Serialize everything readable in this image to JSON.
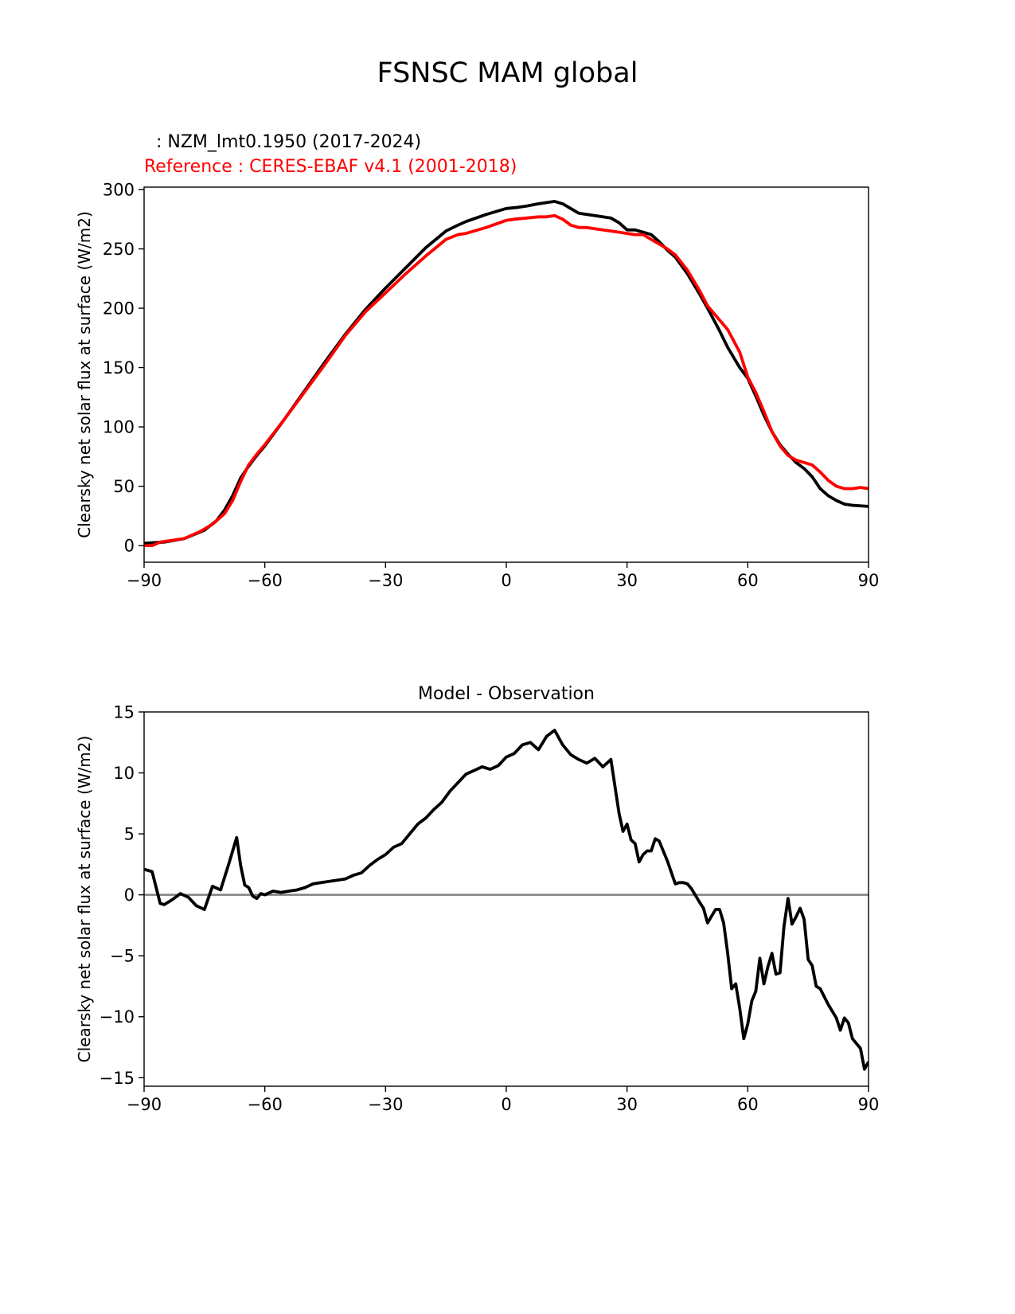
{
  "title": "FSNSC MAM global",
  "legend": {
    "test_label": ": NZM_lmt0.1950 (2017-2024)",
    "ref_label": "Reference : CERES-EBAF v4.1 (2001-2018)",
    "test_color": "#000000",
    "ref_color": "#ff0000"
  },
  "chart_data": [
    {
      "type": "line",
      "title": "",
      "xlabel": "",
      "ylabel": "Clearsky net solar flux at surface (W/m2)",
      "xlim": [
        -90,
        90
      ],
      "ylim": [
        -14,
        302
      ],
      "xticks": [
        -90,
        -60,
        -30,
        0,
        30,
        60,
        90
      ],
      "xtick_labels": [
        "−90",
        "−60",
        "−30",
        "0",
        "30",
        "60",
        "90"
      ],
      "yticks": [
        0,
        50,
        100,
        150,
        200,
        250,
        300
      ],
      "ytick_labels": [
        "0",
        "50",
        "100",
        "150",
        "200",
        "250",
        "300"
      ],
      "series": [
        {
          "name": "Test",
          "color": "#000000",
          "x": [
            -90,
            -85,
            -80,
            -75,
            -72,
            -70,
            -68,
            -66,
            -64,
            -62,
            -60,
            -55,
            -50,
            -45,
            -40,
            -35,
            -30,
            -25,
            -20,
            -15,
            -12,
            -10,
            -5,
            0,
            3,
            5,
            8,
            10,
            12,
            14,
            16,
            18,
            20,
            22,
            24,
            26,
            28,
            30,
            32,
            34,
            36,
            38,
            40,
            42,
            45,
            48,
            50,
            53,
            55,
            58,
            60,
            62,
            64,
            66,
            68,
            70,
            72,
            74,
            76,
            78,
            80,
            82,
            84,
            86,
            90
          ],
          "y": [
            2,
            3,
            6,
            13,
            21,
            30,
            42,
            57,
            67,
            76,
            84,
            107,
            131,
            155,
            178,
            199,
            217,
            234,
            251,
            265,
            270,
            273,
            279,
            284,
            285,
            286,
            288,
            289,
            290,
            288,
            284,
            280,
            279,
            278,
            277,
            276,
            272,
            266,
            266,
            264,
            262,
            256,
            249,
            243,
            229,
            212,
            200,
            181,
            167,
            150,
            141,
            126,
            110,
            96,
            85,
            77,
            70,
            65,
            58,
            48,
            42,
            38,
            35,
            34,
            33
          ]
        },
        {
          "name": "Reference",
          "color": "#ff0000",
          "x": [
            -90,
            -88,
            -86,
            -84,
            -80,
            -76,
            -73,
            -70,
            -68,
            -66,
            -64,
            -62,
            -60,
            -55,
            -50,
            -45,
            -40,
            -35,
            -30,
            -25,
            -20,
            -15,
            -12,
            -10,
            -5,
            0,
            2,
            5,
            8,
            10,
            12,
            14,
            16,
            18,
            20,
            22,
            24,
            26,
            28,
            30,
            32,
            34,
            36,
            38,
            40,
            42,
            45,
            48,
            50,
            53,
            55,
            58,
            60,
            62,
            64,
            66,
            68,
            70,
            72,
            74,
            76,
            78,
            80,
            82,
            84,
            86,
            88,
            90
          ],
          "y": [
            0,
            0,
            3,
            4,
            6,
            12,
            18,
            27,
            38,
            54,
            68,
            77,
            85,
            107,
            130,
            153,
            177,
            197,
            213,
            229,
            244,
            258,
            262,
            263,
            268,
            274,
            275,
            276,
            277,
            277,
            278,
            275,
            270,
            268,
            268,
            267,
            266,
            265,
            264,
            263,
            262,
            262,
            258,
            254,
            250,
            245,
            232,
            215,
            202,
            190,
            182,
            163,
            142,
            129,
            113,
            96,
            84,
            76,
            72,
            70,
            68,
            62,
            55,
            50,
            48,
            48,
            49,
            48
          ]
        }
      ]
    },
    {
      "type": "line",
      "title": "Model - Observation",
      "xlabel": "",
      "ylabel": "Clearsky net solar flux at surface (W/m2)",
      "xlim": [
        -90,
        90
      ],
      "ylim": [
        -15.7,
        15
      ],
      "xticks": [
        -90,
        -60,
        -30,
        0,
        30,
        60,
        90
      ],
      "xtick_labels": [
        "−90",
        "−60",
        "−30",
        "0",
        "30",
        "60",
        "90"
      ],
      "yticks": [
        -15,
        -10,
        -5,
        0,
        5,
        10,
        15
      ],
      "ytick_labels": [
        "−15",
        "−10",
        "−5",
        "0",
        "5",
        "10",
        "15"
      ],
      "zero_line_color": "#808080",
      "series": [
        {
          "name": "Model - Observation",
          "color": "#000000",
          "x": [
            -90,
            -88,
            -86,
            -85,
            -83,
            -81,
            -79,
            -77,
            -75,
            -73,
            -71,
            -69,
            -67,
            -66,
            -65,
            -64,
            -63,
            -62,
            -61,
            -60,
            -58,
            -56,
            -54,
            -52,
            -50,
            -48,
            -46,
            -44,
            -42,
            -40,
            -38,
            -36,
            -34,
            -32,
            -30,
            -28,
            -26,
            -24,
            -22,
            -20,
            -18,
            -16,
            -14,
            -12,
            -10,
            -8,
            -6,
            -4,
            -2,
            0,
            2,
            4,
            6,
            8,
            10,
            12,
            14,
            16,
            18,
            20,
            22,
            24,
            26,
            28,
            29,
            30,
            31,
            32,
            33,
            34,
            35,
            36,
            37,
            38,
            40,
            42,
            43,
            44,
            45,
            46,
            48,
            49,
            50,
            52,
            53,
            54,
            55,
            56,
            57,
            58,
            59,
            60,
            61,
            62,
            63,
            64,
            65,
            66,
            67,
            68,
            69,
            70,
            71,
            72,
            73,
            74,
            75,
            76,
            77,
            78,
            80,
            82,
            83,
            84,
            85,
            86,
            88,
            89,
            90
          ],
          "y": [
            2.1,
            1.9,
            -0.7,
            -0.8,
            -0.4,
            0.1,
            -0.2,
            -0.9,
            -1.2,
            0.7,
            0.4,
            2.5,
            4.7,
            2.4,
            0.8,
            0.6,
            -0.1,
            -0.3,
            0.1,
            0.0,
            0.3,
            0.2,
            0.3,
            0.4,
            0.6,
            0.9,
            1.0,
            1.1,
            1.2,
            1.3,
            1.6,
            1.8,
            2.4,
            2.9,
            3.3,
            3.9,
            4.2,
            5.0,
            5.8,
            6.3,
            7.0,
            7.6,
            8.5,
            9.2,
            9.9,
            10.2,
            10.5,
            10.3,
            10.6,
            11.3,
            11.6,
            12.3,
            12.5,
            11.9,
            13.0,
            13.5,
            12.3,
            11.5,
            11.1,
            10.8,
            11.2,
            10.5,
            11.1,
            6.7,
            5.2,
            5.8,
            4.5,
            4.2,
            2.7,
            3.3,
            3.6,
            3.6,
            4.6,
            4.4,
            2.8,
            0.9,
            1.0,
            1.0,
            0.9,
            0.5,
            -0.6,
            -1.1,
            -2.3,
            -1.2,
            -1.2,
            -2.3,
            -4.8,
            -7.7,
            -7.3,
            -9.3,
            -11.8,
            -10.6,
            -8.7,
            -7.9,
            -5.2,
            -7.3,
            -5.9,
            -4.8,
            -6.5,
            -6.4,
            -2.6,
            -0.3,
            -2.4,
            -1.8,
            -1.1,
            -2.0,
            -5.3,
            -5.8,
            -7.5,
            -7.7,
            -9.0,
            -10.1,
            -11.1,
            -10.1,
            -10.5,
            -11.8,
            -12.6,
            -14.3,
            -13.7
          ]
        }
      ]
    }
  ]
}
